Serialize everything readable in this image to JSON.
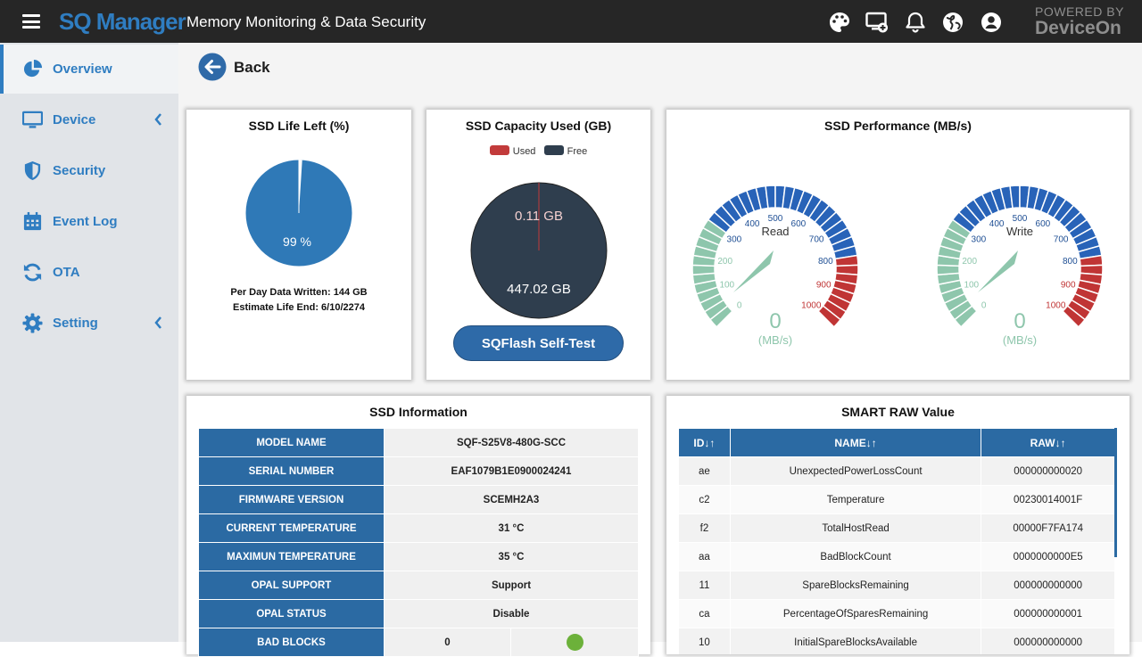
{
  "header": {
    "brand": "SQ Manager",
    "title": "Memory Monitoring & Data Security",
    "powered_by_line1": "POWERED BY",
    "powered_by_line2": "DeviceOn"
  },
  "sidebar": {
    "items": [
      {
        "label": "Overview",
        "icon": "pie-chart-icon",
        "active": true
      },
      {
        "label": "Device",
        "icon": "monitor-icon"
      },
      {
        "label": "Security",
        "icon": "shield-icon"
      },
      {
        "label": "Event Log",
        "icon": "calendar-icon"
      },
      {
        "label": "OTA",
        "icon": "refresh-icon"
      },
      {
        "label": "Setting",
        "icon": "gear-icon"
      }
    ]
  },
  "back_label": "Back",
  "life": {
    "title": "SSD Life Left (%)",
    "value_label": "99 %",
    "per_day": "Per Day Data Written: 144 GB",
    "estimate": "Estimate Life End: 6/10/2274"
  },
  "capacity": {
    "title": "SSD Capacity Used (GB)",
    "legend_used": "Used",
    "legend_free": "Free",
    "used_label": "0.11 GB",
    "free_label": "447.02 GB",
    "selftest_label": "SQFlash Self-Test"
  },
  "performance": {
    "title": "SSD Performance (MB/s)",
    "gauges": [
      {
        "label": "Read",
        "value": "0",
        "unit": "(MB/s)"
      },
      {
        "label": "Write",
        "value": "0",
        "unit": "(MB/s)"
      }
    ],
    "ticks": [
      "0",
      "100",
      "200",
      "300",
      "400",
      "500",
      "600",
      "700",
      "800",
      "900",
      "1000"
    ]
  },
  "info": {
    "title": "SSD Information",
    "rows": [
      {
        "key": "MODEL NAME",
        "value": "SQF-S25V8-480G-SCC"
      },
      {
        "key": "SERIAL NUMBER",
        "value": "EAF1079B1E0900024241"
      },
      {
        "key": "FIRMWARE VERSION",
        "value": "SCEMH2A3"
      },
      {
        "key": "CURRENT TEMPERATURE",
        "value": "31 °C"
      },
      {
        "key": "MAXIMUN TEMPERATURE",
        "value": "35 °C"
      },
      {
        "key": "OPAL SUPPORT",
        "value": "Support"
      },
      {
        "key": "OPAL STATUS",
        "value": "Disable"
      },
      {
        "key": "BAD BLOCKS",
        "value": "0"
      }
    ]
  },
  "smart": {
    "title": "SMART RAW Value",
    "headers": [
      "ID↓↑",
      "NAME↓↑",
      "RAW↓↑"
    ],
    "rows": [
      [
        "ae",
        "UnexpectedPowerLossCount",
        "000000000020"
      ],
      [
        "c2",
        "Temperature",
        "00230014001F"
      ],
      [
        "f2",
        "TotalHostRead",
        "00000F7FA174"
      ],
      [
        "aa",
        "BadBlockCount",
        "0000000000E5"
      ],
      [
        "11",
        "SpareBlocksRemaining",
        "000000000000"
      ],
      [
        "ca",
        "PercentageOfSparesRemaining",
        "000000000001"
      ],
      [
        "10",
        "InitialSpareBlocksAvailable",
        "000000000000"
      ]
    ]
  }
}
